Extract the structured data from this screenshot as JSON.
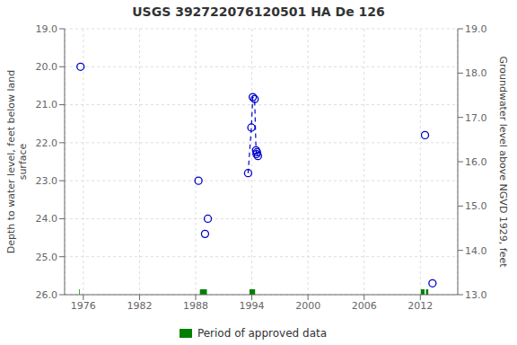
{
  "chart_data": {
    "type": "scatter",
    "title": "USGS 392722076120501 HA De 126",
    "ylabel": "Depth to water level, feet below land\n surface",
    "y2label": "Groundwater level above NGVD 1929, feet",
    "xlim": [
      1974,
      2016
    ],
    "xticks": [
      1976,
      1982,
      1988,
      1994,
      2000,
      2006,
      2012
    ],
    "ylim": [
      26.0,
      19.0
    ],
    "yticks": [
      {
        "value": 19.0,
        "label": "19.0"
      },
      {
        "value": 20.0,
        "label": "20.0"
      },
      {
        "value": 21.0,
        "label": "21.0"
      },
      {
        "value": 22.0,
        "label": "22.0"
      },
      {
        "value": 23.0,
        "label": "23.0"
      },
      {
        "value": 24.0,
        "label": "24.0"
      },
      {
        "value": 25.0,
        "label": "25.0"
      },
      {
        "value": 26.0,
        "label": "26.0"
      }
    ],
    "y2lim": [
      13.0,
      19.0
    ],
    "y2ticks": [
      {
        "value": 19.0,
        "label": "19.0"
      },
      {
        "value": 18.0,
        "label": "18.0"
      },
      {
        "value": 17.0,
        "label": "17.0"
      },
      {
        "value": 16.0,
        "label": "16.0"
      },
      {
        "value": 15.0,
        "label": "15.0"
      },
      {
        "value": 14.0,
        "label": "14.0"
      },
      {
        "value": 13.0,
        "label": "13.0"
      }
    ],
    "grid": true,
    "legend": "bottom",
    "series": [
      {
        "type": "scatter",
        "color": "#0000cc",
        "marker": "open_circle",
        "x": [
          1975.7,
          1988.3,
          1989.0,
          1989.3,
          1993.6,
          1993.95,
          1994.1,
          1994.3,
          1994.45,
          1994.5,
          1994.55,
          1994.65,
          2012.5,
          2013.3
        ],
        "values": [
          20.0,
          23.0,
          24.4,
          24.0,
          22.8,
          21.6,
          20.8,
          20.85,
          22.2,
          22.3,
          22.25,
          22.35,
          21.8,
          25.7
        ]
      },
      {
        "type": "line",
        "color": "#0000cc",
        "line_style": "dashed",
        "x": [
          1993.6,
          1993.95,
          1994.1,
          1994.3,
          1994.45,
          1994.5,
          1994.55,
          1994.65
        ],
        "values": [
          22.8,
          21.6,
          20.8,
          20.85,
          22.2,
          22.3,
          22.25,
          22.35
        ]
      },
      {
        "name": "Period of approved data",
        "type": "bar",
        "orientation": "horizontal",
        "color": "#008000",
        "x_ranges": [
          [
            1975.55,
            1975.62
          ],
          [
            1988.45,
            1989.2
          ],
          [
            1993.75,
            1994.35
          ],
          [
            2012.05,
            2012.45
          ],
          [
            2012.6,
            2012.85
          ]
        ],
        "values": [
          26.0,
          26.0,
          26.0,
          26.0,
          26.0
        ]
      }
    ]
  }
}
